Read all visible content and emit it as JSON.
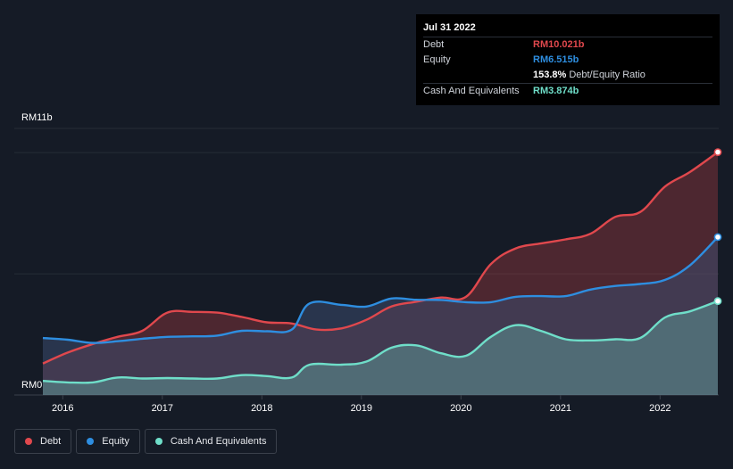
{
  "tooltip": {
    "date": "Jul 31 2022",
    "debt_label": "Debt",
    "debt_value": "RM10.021b",
    "equity_label": "Equity",
    "equity_value": "RM6.515b",
    "ratio_value": "153.8%",
    "ratio_label": "Debt/Equity Ratio",
    "cash_label": "Cash And Equivalents",
    "cash_value": "RM3.874b"
  },
  "legend": {
    "debt": "Debt",
    "equity": "Equity",
    "cash": "Cash And Equivalents"
  },
  "colors": {
    "debt": "#e0484d",
    "equity": "#2e8ee0",
    "cash": "#6fdec9",
    "background": "#151b26"
  },
  "chart_data": {
    "type": "area",
    "title": "",
    "ylabel_top": "RM11b",
    "ylabel_bottom": "RM0",
    "ylim": [
      0,
      11
    ],
    "xlim": [
      2015.8,
      2022.58
    ],
    "x_tick_labels": [
      "2016",
      "2017",
      "2018",
      "2019",
      "2020",
      "2021",
      "2022"
    ],
    "x_tick_values": [
      2016,
      2017,
      2018,
      2019,
      2020,
      2021,
      2022
    ],
    "series": [
      {
        "name": "Debt",
        "points": [
          [
            2015.8,
            1.3
          ],
          [
            2016.05,
            1.75
          ],
          [
            2016.3,
            2.1
          ],
          [
            2016.55,
            2.4
          ],
          [
            2016.8,
            2.65
          ],
          [
            2017.05,
            3.4
          ],
          [
            2017.3,
            3.43
          ],
          [
            2017.55,
            3.4
          ],
          [
            2017.8,
            3.22
          ],
          [
            2018.05,
            3.0
          ],
          [
            2018.3,
            2.95
          ],
          [
            2018.55,
            2.7
          ],
          [
            2018.8,
            2.75
          ],
          [
            2019.05,
            3.1
          ],
          [
            2019.3,
            3.65
          ],
          [
            2019.55,
            3.85
          ],
          [
            2019.8,
            4.02
          ],
          [
            2020.05,
            4.05
          ],
          [
            2020.3,
            5.4
          ],
          [
            2020.55,
            6.05
          ],
          [
            2020.8,
            6.25
          ],
          [
            2021.05,
            6.42
          ],
          [
            2021.3,
            6.65
          ],
          [
            2021.55,
            7.35
          ],
          [
            2021.8,
            7.55
          ],
          [
            2022.05,
            8.6
          ],
          [
            2022.3,
            9.2
          ],
          [
            2022.58,
            10.021
          ]
        ]
      },
      {
        "name": "Equity",
        "points": [
          [
            2015.8,
            2.35
          ],
          [
            2016.05,
            2.28
          ],
          [
            2016.3,
            2.15
          ],
          [
            2016.55,
            2.22
          ],
          [
            2016.8,
            2.32
          ],
          [
            2017.05,
            2.4
          ],
          [
            2017.3,
            2.42
          ],
          [
            2017.55,
            2.45
          ],
          [
            2017.8,
            2.65
          ],
          [
            2018.05,
            2.63
          ],
          [
            2018.3,
            2.7
          ],
          [
            2018.48,
            3.78
          ],
          [
            2018.8,
            3.72
          ],
          [
            2019.05,
            3.65
          ],
          [
            2019.3,
            3.98
          ],
          [
            2019.55,
            3.93
          ],
          [
            2019.8,
            3.92
          ],
          [
            2020.05,
            3.83
          ],
          [
            2020.3,
            3.83
          ],
          [
            2020.55,
            4.05
          ],
          [
            2020.8,
            4.08
          ],
          [
            2021.05,
            4.08
          ],
          [
            2021.3,
            4.35
          ],
          [
            2021.55,
            4.5
          ],
          [
            2021.8,
            4.58
          ],
          [
            2022.05,
            4.75
          ],
          [
            2022.3,
            5.35
          ],
          [
            2022.58,
            6.515
          ]
        ]
      },
      {
        "name": "Cash And Equivalents",
        "points": [
          [
            2015.8,
            0.58
          ],
          [
            2016.05,
            0.52
          ],
          [
            2016.3,
            0.52
          ],
          [
            2016.55,
            0.72
          ],
          [
            2016.8,
            0.68
          ],
          [
            2017.05,
            0.7
          ],
          [
            2017.3,
            0.68
          ],
          [
            2017.55,
            0.68
          ],
          [
            2017.8,
            0.82
          ],
          [
            2018.05,
            0.78
          ],
          [
            2018.3,
            0.72
          ],
          [
            2018.48,
            1.25
          ],
          [
            2018.8,
            1.25
          ],
          [
            2019.05,
            1.38
          ],
          [
            2019.3,
            1.95
          ],
          [
            2019.55,
            2.05
          ],
          [
            2019.8,
            1.72
          ],
          [
            2020.05,
            1.62
          ],
          [
            2020.3,
            2.4
          ],
          [
            2020.55,
            2.88
          ],
          [
            2020.8,
            2.65
          ],
          [
            2021.05,
            2.3
          ],
          [
            2021.3,
            2.25
          ],
          [
            2021.55,
            2.3
          ],
          [
            2021.8,
            2.35
          ],
          [
            2022.05,
            3.2
          ],
          [
            2022.3,
            3.45
          ],
          [
            2022.58,
            3.874
          ]
        ]
      }
    ]
  }
}
